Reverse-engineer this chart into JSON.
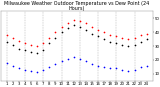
{
  "title": "Milwaukee Weather Outdoor Temperature vs Dew Point (24 Hours)",
  "title_fontsize": 3.5,
  "bg_color": "#ffffff",
  "plot_bg": "#ffffff",
  "hours": [
    1,
    2,
    3,
    4,
    5,
    6,
    7,
    8,
    9,
    10,
    11,
    12,
    13,
    14,
    15,
    16,
    17,
    18,
    19,
    20,
    21,
    22,
    23,
    24
  ],
  "temp": [
    38,
    36,
    34,
    32,
    31,
    30,
    32,
    36,
    40,
    44,
    47,
    49,
    48,
    47,
    44,
    42,
    40,
    38,
    37,
    36,
    35,
    36,
    38,
    39
  ],
  "dewpoint": [
    18,
    16,
    14,
    13,
    12,
    11,
    13,
    15,
    17,
    19,
    21,
    22,
    21,
    19,
    17,
    16,
    15,
    14,
    14,
    13,
    12,
    13,
    15,
    16
  ],
  "feels_like": [
    33,
    31,
    28,
    27,
    26,
    25,
    27,
    32,
    36,
    40,
    43,
    45,
    44,
    42,
    39,
    37,
    35,
    33,
    32,
    31,
    30,
    31,
    33,
    35
  ],
  "temp_color": "#ff0000",
  "dew_color": "#0000ff",
  "feels_color": "#000000",
  "dot_size": 1.5,
  "ylim_min": 5,
  "ylim_max": 55,
  "yticks": [
    10,
    20,
    30,
    40,
    50
  ],
  "ytick_labels": [
    "10",
    "20",
    "30",
    "40",
    "50"
  ],
  "vlines": [
    1,
    4,
    7,
    10,
    13,
    16,
    19,
    22
  ],
  "grid_color": "#888888",
  "tick_color": "#000000",
  "tick_fontsize": 2.8,
  "xtick_step": 2
}
